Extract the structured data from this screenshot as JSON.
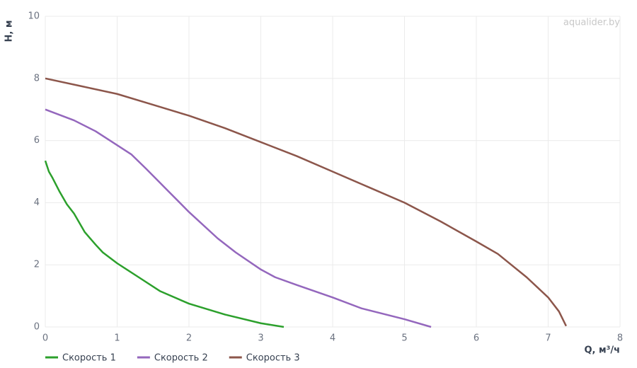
{
  "chart_data": {
    "type": "line",
    "xlabel": "Q, м³/ч",
    "ylabel": "H, м",
    "watermark": "aqualider.by",
    "xlim": [
      0,
      8
    ],
    "xticks": [
      0,
      1,
      2,
      3,
      4,
      5,
      6,
      7,
      8
    ],
    "ylim": [
      0,
      10
    ],
    "yticks": [
      0,
      2,
      4,
      6,
      8,
      10
    ],
    "grid": true,
    "legend": "bottom-left",
    "series": [
      {
        "name": "Скорость 1",
        "color": "#2ca02c",
        "x": [
          0,
          0.05,
          0.1,
          0.2,
          0.3,
          0.4,
          0.55,
          0.7,
          0.8,
          1,
          1.3,
          1.6,
          2,
          2.5,
          3,
          3.32
        ],
        "values": [
          5.35,
          5.0,
          4.8,
          4.35,
          3.95,
          3.65,
          3.05,
          2.65,
          2.4,
          2.05,
          1.6,
          1.15,
          0.75,
          0.4,
          0.12,
          0
        ]
      },
      {
        "name": "Скорость 2",
        "color": "#9467bd",
        "x": [
          0,
          0.4,
          0.7,
          0.9,
          1.2,
          1.4,
          1.7,
          2,
          2.4,
          2.65,
          3,
          3.2,
          3.5,
          4,
          4.4,
          5,
          5.37
        ],
        "values": [
          7,
          6.65,
          6.3,
          6.0,
          5.55,
          5.1,
          4.4,
          3.7,
          2.85,
          2.4,
          1.85,
          1.6,
          1.35,
          0.95,
          0.6,
          0.25,
          0
        ]
      },
      {
        "name": "Скорость 3",
        "color": "#8c564b",
        "x": [
          0,
          0.5,
          1,
          1.5,
          2,
          2.5,
          3,
          3.5,
          4,
          4.5,
          5,
          5.5,
          6,
          6.3,
          6.7,
          7,
          7.15,
          7.25
        ],
        "values": [
          8,
          7.75,
          7.5,
          7.15,
          6.8,
          6.4,
          5.95,
          5.5,
          5.0,
          4.5,
          4.0,
          3.4,
          2.75,
          2.35,
          1.6,
          0.95,
          0.5,
          0.03
        ]
      }
    ]
  }
}
